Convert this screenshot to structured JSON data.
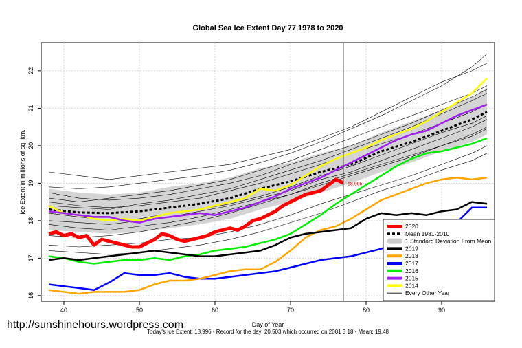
{
  "watermark": "http://sunshinehours.wordpress.com",
  "colors": {
    "y2020": "#ff0000",
    "mean": "#000000",
    "sd_band": "#cccccc",
    "y2019": "#000000",
    "y2018": "#ffa500",
    "y2017": "#0000ff",
    "y2016": "#00ee00",
    "y2015": "#a020f0",
    "y2014": "#ffff00",
    "other": "#000000",
    "marker": "#555555"
  },
  "chart_data": {
    "type": "line",
    "title": "Global Sea Ice Extent Day 77 1978 to 2020",
    "xlabel": "Day of Year",
    "ylabel": "Ice Extent in millions of sq. km.",
    "subtitle": "Today's Ice Extent: 18.996  - Record for the day: 20.503 which occurred on 2001 3 18  - Mean: 19.48",
    "xlim": [
      37,
      97
    ],
    "ylim": [
      15.85,
      22.75
    ],
    "xticks": [
      40,
      50,
      60,
      70,
      80,
      90
    ],
    "yticks": [
      16,
      17,
      18,
      19,
      20,
      21,
      22
    ],
    "current_day": 77,
    "current_label": "18.996",
    "grid": true,
    "legend_position": "bottom-right",
    "legend": [
      {
        "label": "2020",
        "key": "y2020",
        "style": "thick"
      },
      {
        "label": "Mean 1981-2010",
        "key": "mean",
        "style": "dashed"
      },
      {
        "label": "1 Standard Deviation From Mean",
        "key": "sd_band",
        "style": "band"
      },
      {
        "label": "2019",
        "key": "y2019",
        "style": "thick"
      },
      {
        "label": "2018",
        "key": "y2018",
        "style": "thick"
      },
      {
        "label": "2017",
        "key": "y2017",
        "style": "thick"
      },
      {
        "label": "2016",
        "key": "y2016",
        "style": "thick"
      },
      {
        "label": "2015",
        "key": "y2015",
        "style": "thick"
      },
      {
        "label": "2014",
        "key": "y2014",
        "style": "thick"
      },
      {
        "label": "Every Other Year",
        "key": "other",
        "style": "thin"
      }
    ],
    "mean": {
      "x": [
        38,
        42,
        46,
        50,
        54,
        58,
        62,
        66,
        70,
        74,
        78,
        82,
        86,
        90,
        94,
        96
      ],
      "y": [
        18.3,
        18.22,
        18.2,
        18.25,
        18.35,
        18.45,
        18.6,
        18.85,
        19.05,
        19.3,
        19.5,
        19.85,
        20.1,
        20.4,
        20.7,
        20.9
      ]
    },
    "sd_band": {
      "x": [
        38,
        42,
        46,
        50,
        54,
        58,
        62,
        66,
        70,
        74,
        78,
        82,
        86,
        90,
        94,
        96
      ],
      "upper": [
        18.85,
        18.75,
        18.7,
        18.75,
        18.9,
        19.0,
        19.15,
        19.4,
        19.55,
        19.8,
        20.0,
        20.35,
        20.65,
        20.95,
        21.3,
        21.55
      ],
      "lower": [
        17.75,
        17.7,
        17.65,
        17.7,
        17.8,
        17.9,
        18.05,
        18.3,
        18.5,
        18.75,
        19.0,
        19.3,
        19.55,
        19.85,
        20.1,
        20.3
      ]
    },
    "series": [
      {
        "name": "2014",
        "key": "y2014",
        "x": [
          38,
          40,
          42,
          44,
          46,
          48,
          50,
          52,
          54,
          56,
          58,
          60,
          62,
          64,
          66,
          68,
          70,
          72,
          74,
          76,
          78,
          80,
          82,
          84,
          86,
          88,
          90,
          92,
          94,
          96
        ],
        "y": [
          18.4,
          18.2,
          18.15,
          18.05,
          18.0,
          18.05,
          18.0,
          18.1,
          18.2,
          18.25,
          18.3,
          18.4,
          18.5,
          18.6,
          18.85,
          18.8,
          18.95,
          19.2,
          19.45,
          19.65,
          19.8,
          19.95,
          20.15,
          20.3,
          20.45,
          20.65,
          20.9,
          21.15,
          21.4,
          21.8
        ]
      },
      {
        "name": "2015",
        "key": "y2015",
        "x": [
          38,
          40,
          42,
          44,
          46,
          48,
          50,
          52,
          54,
          56,
          58,
          60,
          62,
          64,
          66,
          68,
          70,
          72,
          74,
          76,
          78,
          80,
          82,
          84,
          86,
          88,
          90,
          92,
          94,
          96
        ],
        "y": [
          18.25,
          18.2,
          18.15,
          18.1,
          18.1,
          18.0,
          17.95,
          18.05,
          18.1,
          18.15,
          18.2,
          18.15,
          18.25,
          18.35,
          18.5,
          18.65,
          18.85,
          19.0,
          19.15,
          19.35,
          19.55,
          19.75,
          19.95,
          20.15,
          20.3,
          20.4,
          20.6,
          20.8,
          20.95,
          21.1
        ]
      },
      {
        "name": "2016",
        "key": "y2016",
        "x": [
          38,
          40,
          42,
          44,
          46,
          48,
          50,
          52,
          54,
          56,
          58,
          60,
          62,
          64,
          66,
          68,
          70,
          72,
          74,
          76,
          78,
          80,
          82,
          84,
          86,
          88,
          90,
          92,
          94,
          96
        ],
        "y": [
          17.05,
          17.0,
          16.9,
          16.85,
          16.9,
          16.95,
          16.95,
          17.0,
          16.95,
          17.05,
          17.1,
          17.2,
          17.25,
          17.3,
          17.4,
          17.5,
          17.65,
          17.9,
          18.15,
          18.45,
          18.7,
          18.95,
          19.2,
          19.45,
          19.65,
          19.8,
          19.85,
          19.95,
          20.05,
          20.2
        ]
      },
      {
        "name": "2017",
        "key": "y2017",
        "x": [
          38,
          40,
          42,
          44,
          46,
          48,
          50,
          52,
          54,
          56,
          58,
          60,
          62,
          64,
          66,
          68,
          70,
          72,
          74,
          76,
          78,
          80,
          82,
          84,
          86,
          88,
          90,
          92,
          94,
          96
        ],
        "y": [
          16.3,
          16.25,
          16.2,
          16.15,
          16.35,
          16.6,
          16.55,
          16.55,
          16.6,
          16.5,
          16.45,
          16.45,
          16.5,
          16.55,
          16.6,
          16.65,
          16.75,
          16.85,
          16.95,
          17.0,
          17.05,
          17.15,
          17.25,
          17.4,
          17.55,
          17.7,
          17.8,
          17.95,
          18.35,
          18.35
        ]
      },
      {
        "name": "2018",
        "key": "y2018",
        "x": [
          38,
          40,
          42,
          44,
          46,
          48,
          50,
          52,
          54,
          56,
          58,
          60,
          62,
          64,
          66,
          68,
          70,
          72,
          74,
          76,
          78,
          80,
          82,
          84,
          86,
          88,
          90,
          92,
          94,
          96
        ],
        "y": [
          16.15,
          16.1,
          16.05,
          16.1,
          16.1,
          16.1,
          16.15,
          16.3,
          16.4,
          16.4,
          16.45,
          16.55,
          16.65,
          16.7,
          16.7,
          16.9,
          17.2,
          17.55,
          17.75,
          17.85,
          18.05,
          18.3,
          18.55,
          18.7,
          18.85,
          19.0,
          19.1,
          19.15,
          19.1,
          19.15
        ]
      },
      {
        "name": "2019",
        "key": "y2019",
        "x": [
          38,
          40,
          42,
          44,
          46,
          48,
          50,
          52,
          54,
          56,
          58,
          60,
          62,
          64,
          66,
          68,
          70,
          72,
          74,
          76,
          78,
          80,
          82,
          84,
          86,
          88,
          90,
          92,
          94,
          96
        ],
        "y": [
          16.95,
          17.0,
          16.95,
          17.0,
          17.05,
          17.1,
          17.15,
          17.2,
          17.15,
          17.1,
          17.05,
          17.05,
          17.1,
          17.15,
          17.2,
          17.35,
          17.55,
          17.65,
          17.7,
          17.75,
          17.8,
          18.05,
          18.2,
          18.15,
          18.2,
          18.15,
          18.25,
          18.3,
          18.5,
          18.45
        ]
      },
      {
        "name": "2020",
        "key": "y2020",
        "x": [
          38,
          39,
          40,
          41,
          42,
          43,
          44,
          45,
          46,
          47,
          48,
          49,
          50,
          51,
          52,
          53,
          54,
          55,
          56,
          57,
          58,
          59,
          60,
          61,
          62,
          63,
          64,
          65,
          66,
          67,
          68,
          69,
          70,
          71,
          72,
          73,
          74,
          75,
          76,
          77
        ],
        "y": [
          17.65,
          17.7,
          17.6,
          17.65,
          17.55,
          17.6,
          17.35,
          17.5,
          17.45,
          17.4,
          17.35,
          17.3,
          17.3,
          17.4,
          17.5,
          17.65,
          17.6,
          17.5,
          17.45,
          17.5,
          17.55,
          17.6,
          17.7,
          17.75,
          17.8,
          17.75,
          17.85,
          18.0,
          18.05,
          18.15,
          18.25,
          18.4,
          18.5,
          18.6,
          18.7,
          18.75,
          18.8,
          18.95,
          19.1,
          19.0
        ]
      }
    ],
    "other_years": [
      [
        18.6,
        18.5,
        18.6,
        18.7,
        18.8,
        18.95,
        19.1,
        19.35,
        19.6,
        19.9,
        20.2,
        20.5,
        20.8,
        21.1,
        21.4,
        21.6
      ],
      [
        18.9,
        18.85,
        18.9,
        19.0,
        19.1,
        19.2,
        19.35,
        19.55,
        19.8,
        20.1,
        20.45,
        20.8,
        21.2,
        21.6,
        22.1,
        22.45
      ],
      [
        19.3,
        19.2,
        19.1,
        19.2,
        19.3,
        19.4,
        19.5,
        19.7,
        19.9,
        20.2,
        20.5,
        20.9,
        21.3,
        21.7,
        22.0,
        22.2
      ],
      [
        18.5,
        18.4,
        18.35,
        18.4,
        18.5,
        18.6,
        18.8,
        19.0,
        19.25,
        19.5,
        19.8,
        20.05,
        20.3,
        20.6,
        20.9,
        21.1
      ],
      [
        18.0,
        17.95,
        17.9,
        18.0,
        18.1,
        18.25,
        18.4,
        18.6,
        18.8,
        19.1,
        19.3,
        19.6,
        19.9,
        20.2,
        20.5,
        20.7
      ],
      [
        17.6,
        17.55,
        17.6,
        17.7,
        17.85,
        18.0,
        18.2,
        18.45,
        18.7,
        19.0,
        19.25,
        19.5,
        19.75,
        20.0,
        20.3,
        20.5
      ],
      [
        18.2,
        18.1,
        18.0,
        18.05,
        18.2,
        18.3,
        18.45,
        18.65,
        18.9,
        19.2,
        19.45,
        19.75,
        20.05,
        20.35,
        20.6,
        20.8
      ],
      [
        17.35,
        17.3,
        17.35,
        17.4,
        17.5,
        17.55,
        17.7,
        17.9,
        18.15,
        18.45,
        18.7,
        18.95,
        19.2,
        19.5,
        19.8,
        20.0
      ],
      [
        18.75,
        18.6,
        18.55,
        18.6,
        18.7,
        18.85,
        19.0,
        19.2,
        19.5,
        19.75,
        20.0,
        20.3,
        20.6,
        20.95,
        21.3,
        21.5
      ],
      [
        17.2,
        17.15,
        17.1,
        17.15,
        17.25,
        17.35,
        17.5,
        17.7,
        17.95,
        18.2,
        18.5,
        18.8,
        19.05,
        19.35,
        19.6,
        19.8
      ],
      [
        18.4,
        18.35,
        18.3,
        18.45,
        18.55,
        18.7,
        18.85,
        19.1,
        19.35,
        19.6,
        19.9,
        20.2,
        20.5,
        20.85,
        21.2,
        21.4
      ],
      [
        17.9,
        17.8,
        17.75,
        17.85,
        17.95,
        18.1,
        18.3,
        18.5,
        18.7,
        18.95,
        19.2,
        19.45,
        19.7,
        20.0,
        20.25,
        20.45
      ]
    ],
    "other_x": [
      38,
      42,
      46,
      50,
      54,
      58,
      62,
      66,
      70,
      74,
      78,
      82,
      86,
      90,
      94,
      96
    ]
  }
}
